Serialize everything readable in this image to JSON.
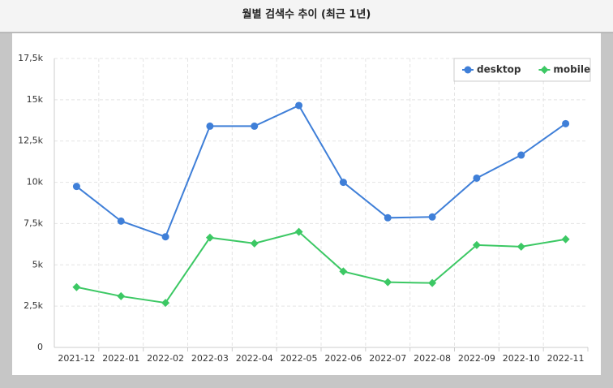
{
  "chart_data": {
    "type": "line",
    "title": "월별 검색수 추이 (최근 1년)",
    "categories": [
      "2021-12",
      "2022-01",
      "2022-02",
      "2022-03",
      "2022-04",
      "2022-05",
      "2022-06",
      "2022-07",
      "2022-08",
      "2022-09",
      "2022-10",
      "2022-11"
    ],
    "series": [
      {
        "name": "desktop",
        "color": "#3f7fd8",
        "values": [
          9750,
          7650,
          6700,
          13400,
          13400,
          14650,
          10000,
          7850,
          7900,
          10250,
          11650,
          13550
        ]
      },
      {
        "name": "mobile",
        "color": "#3cc864",
        "values": [
          3650,
          3100,
          2700,
          6650,
          6300,
          7000,
          4600,
          3950,
          3900,
          6200,
          6100,
          6550
        ]
      }
    ],
    "ylim": [
      0,
      17500
    ],
    "yticks": [
      0,
      {
        "value": 2500,
        "label": "2,5k"
      },
      {
        "value": 5000,
        "label": "5k"
      },
      {
        "value": 7500,
        "label": "7,5k"
      },
      {
        "value": 10000,
        "label": "10k"
      },
      {
        "value": 12500,
        "label": "12,5k"
      },
      {
        "value": 15000,
        "label": "15k"
      },
      {
        "value": 17500,
        "label": "17,5k"
      }
    ],
    "grid": true,
    "legend": "top-right"
  }
}
